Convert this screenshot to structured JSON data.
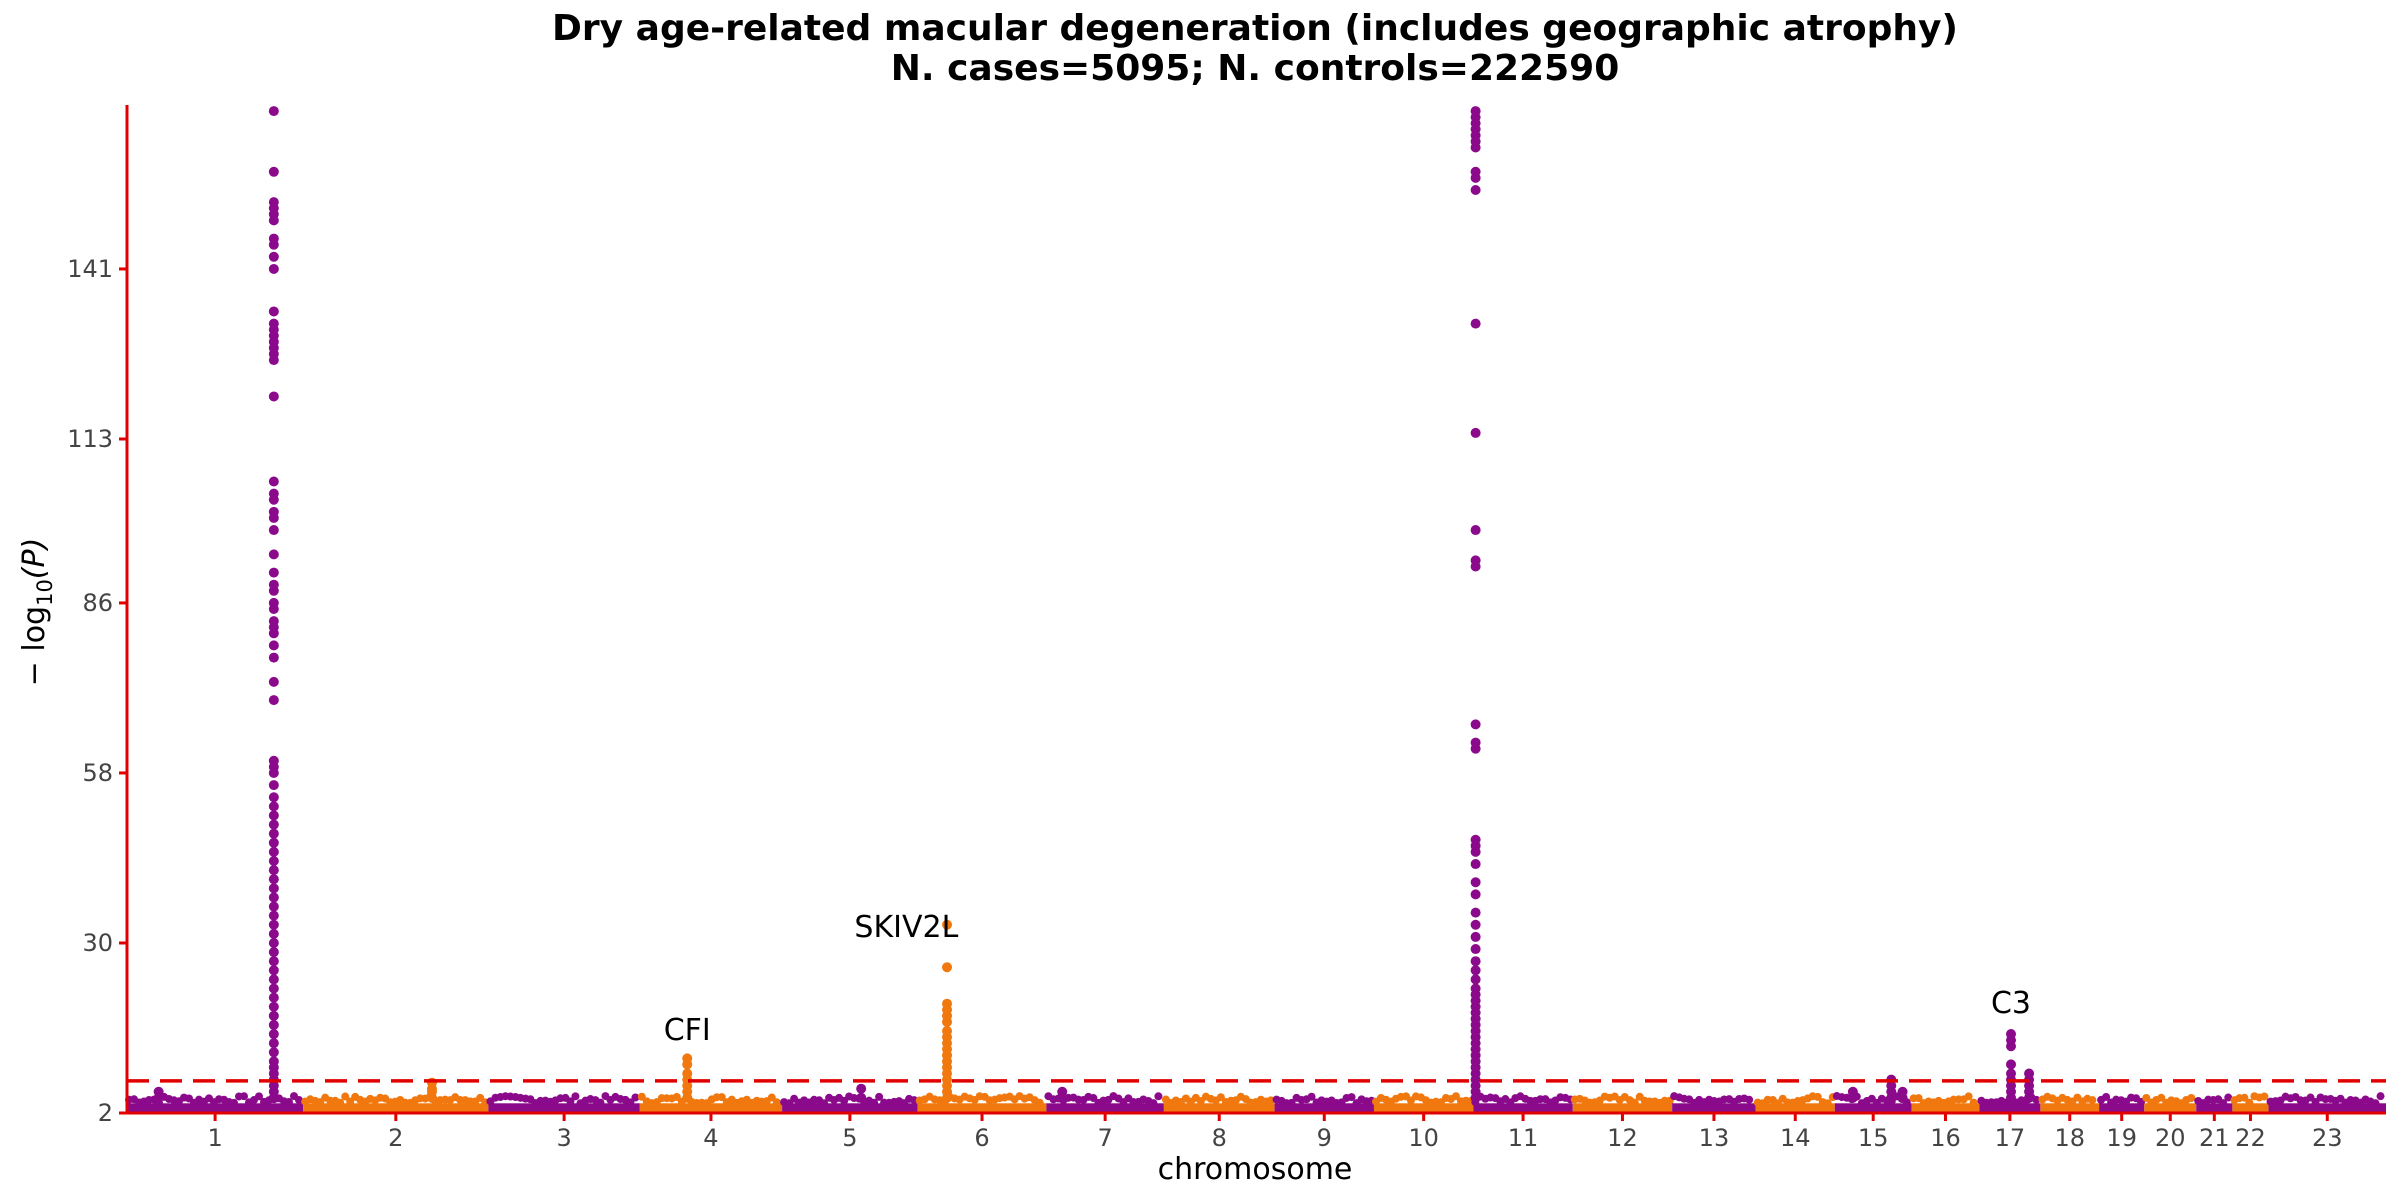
{
  "chart_data": {
    "type": "scatter",
    "subtype": "manhattan",
    "title": "Dry age-related macular degeneration (includes geographic atrophy)",
    "subtitle": "N. cases=5095; N. controls=222590",
    "xlabel": "chromosome",
    "ylabel": "−log10(P)",
    "ylabel_parts": {
      "prefix": "− log",
      "sub": "10",
      "suffix": "(P)"
    },
    "ylim": [
      2,
      168
    ],
    "xlim": [
      0,
      1
    ],
    "y_ticks": [
      2,
      30,
      58,
      86,
      113,
      141
    ],
    "significance_threshold": 7.3,
    "colors": {
      "odd": "#8B0A8B",
      "even": "#F0780F",
      "axis": "#E00000",
      "threshold": "#E00000"
    },
    "chromosomes": [
      {
        "label": "1",
        "start": 0.0,
        "end": 0.078
      },
      {
        "label": "2",
        "start": 0.078,
        "end": 0.16
      },
      {
        "label": "3",
        "start": 0.16,
        "end": 0.227
      },
      {
        "label": "4",
        "start": 0.227,
        "end": 0.29
      },
      {
        "label": "5",
        "start": 0.29,
        "end": 0.35
      },
      {
        "label": "6",
        "start": 0.35,
        "end": 0.407
      },
      {
        "label": "7",
        "start": 0.407,
        "end": 0.459
      },
      {
        "label": "8",
        "start": 0.459,
        "end": 0.508
      },
      {
        "label": "9",
        "start": 0.508,
        "end": 0.552
      },
      {
        "label": "10",
        "start": 0.552,
        "end": 0.596
      },
      {
        "label": "11",
        "start": 0.596,
        "end": 0.64
      },
      {
        "label": "12",
        "start": 0.64,
        "end": 0.684
      },
      {
        "label": "13",
        "start": 0.684,
        "end": 0.721
      },
      {
        "label": "14",
        "start": 0.721,
        "end": 0.756
      },
      {
        "label": "15",
        "start": 0.756,
        "end": 0.79
      },
      {
        "label": "16",
        "start": 0.79,
        "end": 0.82
      },
      {
        "label": "17",
        "start": 0.82,
        "end": 0.847
      },
      {
        "label": "18",
        "start": 0.847,
        "end": 0.873
      },
      {
        "label": "19",
        "start": 0.873,
        "end": 0.893
      },
      {
        "label": "20",
        "start": 0.893,
        "end": 0.916
      },
      {
        "label": "21",
        "start": 0.916,
        "end": 0.932
      },
      {
        "label": "22",
        "start": 0.932,
        "end": 0.948
      },
      {
        "label": "23",
        "start": 0.948,
        "end": 1.0
      }
    ],
    "peaks": [
      {
        "x": 0.065,
        "values": [
          4.5,
          5.5,
          6.5,
          7.5,
          8.5,
          9.5,
          10.5,
          12,
          13.5,
          15,
          16.5,
          18,
          19.5,
          21,
          22.5,
          24,
          25.5,
          27,
          28.5,
          30,
          31.5,
          33,
          34.5,
          36,
          37.5,
          39,
          40.5,
          42,
          43.5,
          45,
          46.5,
          48,
          49.5,
          51,
          52.5,
          54,
          56,
          58,
          59,
          60,
          70,
          73,
          77,
          79,
          81,
          82,
          83,
          85,
          86,
          88,
          89,
          91,
          94,
          98,
          100,
          101,
          103,
          104,
          106,
          120,
          126,
          127,
          128,
          129,
          130,
          131,
          132,
          134,
          141,
          143,
          145,
          146,
          149,
          150,
          151,
          152,
          157,
          167
        ]
      },
      {
        "x": 0.597,
        "values": [
          4.5,
          5.5,
          6.5,
          7.5,
          8.5,
          9.5,
          10.5,
          11.5,
          12.5,
          13.5,
          14.5,
          15.5,
          16.5,
          17.5,
          18.5,
          19.5,
          20.5,
          21.5,
          22.5,
          24,
          25.5,
          27,
          29,
          31,
          33,
          35,
          38,
          40,
          43,
          45,
          46,
          47,
          62,
          63,
          66,
          92,
          93,
          98,
          114,
          132,
          154,
          156,
          157,
          161,
          162,
          163,
          164,
          165,
          166,
          167
        ]
      },
      {
        "x": 0.363,
        "values": [
          4.5,
          5.5,
          6.5,
          7.5,
          8.5,
          9.5,
          10.5,
          11.5,
          12.5,
          13.5,
          14.5,
          15.5,
          17,
          18,
          19,
          20,
          26,
          33
        ]
      },
      {
        "x": 0.248,
        "values": [
          4.5,
          5.5,
          6.5,
          7.5,
          8.5,
          10,
          11
        ]
      },
      {
        "x": 0.834,
        "values": [
          4.5,
          5.5,
          6.5,
          7.5,
          8.5,
          10,
          13,
          14,
          15
        ]
      },
      {
        "x": 0.135,
        "values": [
          4.5,
          5.5,
          6,
          7
        ]
      },
      {
        "x": 0.781,
        "values": [
          4.5,
          5.5,
          6.5,
          7.5
        ]
      },
      {
        "x": 0.842,
        "values": [
          4.5,
          5.5,
          6.5,
          7.5,
          8.5
        ]
      },
      {
        "x": 0.325,
        "values": [
          4.5,
          6
        ]
      },
      {
        "x": 0.414,
        "values": [
          4.5,
          5.5
        ]
      },
      {
        "x": 0.764,
        "values": [
          4.5,
          5.5
        ]
      },
      {
        "x": 0.786,
        "values": [
          4.5,
          5.5
        ]
      },
      {
        "x": 0.014,
        "values": [
          4.5,
          5.5
        ]
      }
    ],
    "annotations": [
      {
        "text": "CFI",
        "x": 0.248,
        "y": 14
      },
      {
        "text": "SKIV2L",
        "x": 0.345,
        "y": 31
      },
      {
        "text": "C3",
        "x": 0.834,
        "y": 18.5
      }
    ]
  }
}
